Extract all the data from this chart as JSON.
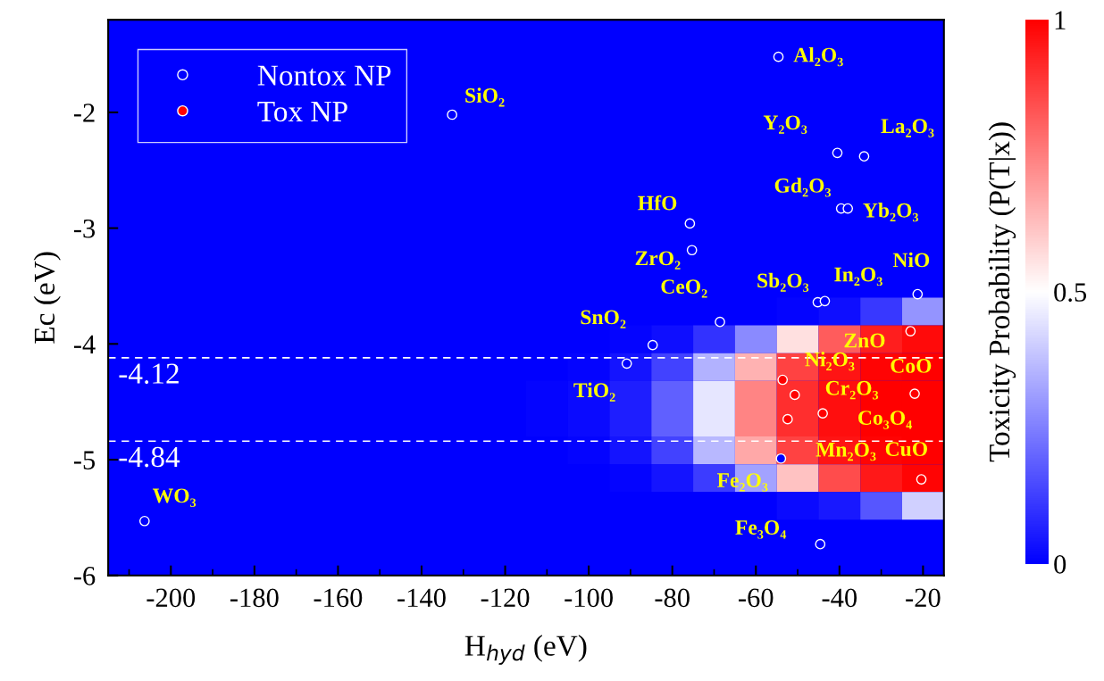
{
  "chart_data": [
    {
      "type": "heatmap",
      "clabel": "Toxicity Probability (P(T|x))",
      "clim": [
        0,
        1
      ],
      "cticks": [
        0,
        0.5,
        1
      ],
      "categories": [
        null,
        null,
        null,
        null,
        null,
        null,
        null,
        null,
        null,
        null,
        null,
        null,
        null,
        null,
        null,
        null,
        null,
        null,
        null,
        null
      ],
      "y_categories": [
        null,
        null,
        null,
        null,
        null,
        null,
        null,
        null,
        null,
        null,
        null,
        null,
        null,
        null,
        null,
        null,
        null,
        null,
        null,
        null
      ],
      "cells": [
        [
          0,
          0,
          0,
          0,
          0,
          0,
          0,
          0,
          0,
          0,
          0,
          0,
          0,
          0,
          0,
          0,
          0,
          0,
          0,
          0
        ],
        [
          0,
          0,
          0,
          0,
          0,
          0,
          0,
          0,
          0,
          0,
          0,
          0,
          0,
          0,
          0,
          0,
          0,
          0,
          0,
          0
        ],
        [
          0,
          0,
          0,
          0,
          0,
          0,
          0,
          0,
          0,
          0,
          0,
          0,
          0,
          0,
          0,
          0,
          0,
          0,
          0,
          0
        ],
        [
          0,
          0,
          0,
          0,
          0,
          0,
          0,
          0,
          0,
          0,
          0,
          0,
          0,
          0,
          0,
          0,
          0,
          0,
          0,
          0
        ],
        [
          0,
          0,
          0,
          0,
          0,
          0,
          0,
          0,
          0,
          0,
          0,
          0,
          0,
          0,
          0,
          0,
          0,
          0,
          0,
          0
        ],
        [
          0,
          0,
          0,
          0,
          0,
          0,
          0,
          0,
          0,
          0,
          0,
          0,
          0,
          0,
          0,
          0,
          0,
          0,
          0,
          0
        ],
        [
          0,
          0,
          0,
          0,
          0,
          0,
          0,
          0,
          0,
          0,
          0,
          0,
          0,
          0,
          0,
          0,
          0,
          0,
          0,
          0
        ],
        [
          0,
          0,
          0,
          0,
          0,
          0,
          0,
          0,
          0,
          0,
          0,
          0,
          0,
          0,
          0,
          0,
          0,
          0,
          0,
          0
        ],
        [
          0,
          0,
          0,
          0,
          0,
          0,
          0,
          0,
          0,
          0,
          0,
          0,
          0,
          0,
          0,
          0,
          0,
          0,
          0,
          0
        ],
        [
          0,
          0,
          0,
          0,
          0,
          0,
          0,
          0,
          0,
          0,
          0,
          0,
          0,
          0,
          0,
          0,
          0,
          0,
          0,
          0
        ],
        [
          0,
          0,
          0,
          0,
          0,
          0,
          0,
          0,
          0,
          0,
          0,
          0,
          0,
          0,
          0,
          0,
          0.01,
          0.03,
          0.11,
          0.29
        ],
        [
          0,
          0,
          0,
          0,
          0,
          0,
          0,
          0,
          0,
          0,
          0,
          0,
          0.01,
          0.03,
          0.1,
          0.27,
          0.56,
          0.82,
          0.94,
          0.98
        ],
        [
          0,
          0,
          0,
          0,
          0,
          0,
          0,
          0,
          0,
          0,
          0,
          0.01,
          0.04,
          0.13,
          0.35,
          0.65,
          0.87,
          0.96,
          0.99,
          1
        ],
        [
          0,
          0,
          0,
          0,
          0,
          0,
          0,
          0,
          0,
          0,
          0.01,
          0.02,
          0.06,
          0.19,
          0.45,
          0.74,
          0.91,
          0.97,
          1,
          1
        ],
        [
          0,
          0,
          0,
          0,
          0,
          0,
          0,
          0,
          0,
          0,
          0.01,
          0.02,
          0.06,
          0.19,
          0.45,
          0.74,
          0.91,
          0.97,
          1,
          1
        ],
        [
          0,
          0,
          0,
          0,
          0,
          0,
          0,
          0,
          0,
          0,
          0,
          0.01,
          0.04,
          0.13,
          0.36,
          0.67,
          0.87,
          0.96,
          0.99,
          1
        ],
        [
          0,
          0,
          0,
          0,
          0,
          0,
          0,
          0,
          0,
          0,
          0,
          0,
          0.01,
          0.04,
          0.12,
          0.32,
          0.62,
          0.85,
          0.95,
          0.99
        ],
        [
          0,
          0,
          0,
          0,
          0,
          0,
          0,
          0,
          0,
          0,
          0,
          0,
          0,
          0,
          0,
          0,
          0.02,
          0.05,
          0.17,
          0.41
        ],
        [
          0,
          0,
          0,
          0,
          0,
          0,
          0,
          0,
          0,
          0,
          0,
          0,
          0,
          0,
          0,
          0,
          0,
          0,
          0,
          0
        ],
        [
          0,
          0,
          0,
          0,
          0,
          0,
          0,
          0,
          0,
          0,
          0,
          0,
          0,
          0,
          0,
          0,
          0,
          0,
          0,
          0
        ]
      ]
    },
    {
      "type": "scatter",
      "xlabel": "H$_{hyd}$ (eV)",
      "ylabel": "Ec (eV)",
      "xlim": [
        -215,
        -15
      ],
      "xticks": [
        -200,
        -180,
        -160,
        -140,
        -120,
        -100,
        -80,
        -60,
        -40,
        -20
      ],
      "ylim": [
        -6,
        -1.2
      ],
      "yticks": [
        -6,
        -5,
        -4,
        -3,
        -2
      ],
      "legend": "top left",
      "marker": "circle",
      "series": [
        {
          "name": "Nontox NP",
          "color": "#0000ff",
          "x": [
            -54.6,
            -132.7,
            -40.5,
            -34.1,
            -39.6,
            -38.0,
            -75.8,
            -75.3,
            -45.2,
            -43.5,
            -21.3,
            -68.6,
            -84.7,
            -90.9,
            -54.0,
            -44.6,
            -206.3
          ],
          "values": [
            -1.52,
            -2.02,
            -2.35,
            -2.38,
            -2.83,
            -2.83,
            -2.96,
            -3.19,
            -3.64,
            -3.63,
            -3.57,
            -3.81,
            -4.01,
            -4.17,
            -4.99,
            -5.73,
            -5.53
          ]
        },
        {
          "name": "Tox NP",
          "color": "#ff0000",
          "x": [
            -23.0,
            -53.6,
            -50.7,
            -22.0,
            -44.0,
            -52.4,
            -20.4
          ],
          "values": [
            -3.89,
            -4.31,
            -4.44,
            -4.43,
            -4.6,
            -4.65,
            -5.17
          ]
        }
      ],
      "ref_lines": [
        {
          "axis": "y",
          "value": -4.12,
          "label": "-4.12",
          "color": "#ffffff",
          "line_style": "dashed"
        },
        {
          "axis": "y",
          "value": -4.84,
          "label": "-4.84",
          "color": "#ffffff",
          "line_style": "dashed"
        }
      ],
      "annotations": [
        {
          "text": "Al₂O₃",
          "x": -54.6,
          "y": -1.52
        },
        {
          "text": "SiO₂",
          "x": -132.7,
          "y": -2.02
        },
        {
          "text": "Y₂O₃",
          "x": -40.5,
          "y": -2.35
        },
        {
          "text": "La₂O₃",
          "x": -34.1,
          "y": -2.38
        },
        {
          "text": "Gd₂O₃",
          "x": -39.6,
          "y": -2.83
        },
        {
          "text": "Yb₂O₃",
          "x": -38.0,
          "y": -2.83
        },
        {
          "text": "HfO",
          "x": -75.8,
          "y": -2.96
        },
        {
          "text": "ZrO₂",
          "x": -75.3,
          "y": -3.19
        },
        {
          "text": "Sb₂O₃",
          "x": -45.2,
          "y": -3.64
        },
        {
          "text": "In₂O₃",
          "x": -43.5,
          "y": -3.63
        },
        {
          "text": "NiO",
          "x": -21.3,
          "y": -3.57
        },
        {
          "text": "CeO₂",
          "x": -68.6,
          "y": -3.81
        },
        {
          "text": "SnO₂",
          "x": -84.7,
          "y": -4.01
        },
        {
          "text": "TiO₂",
          "x": -90.9,
          "y": -4.17
        },
        {
          "text": "Fe₂O₃",
          "x": -54.0,
          "y": -4.99
        },
        {
          "text": "Fe₃O₄",
          "x": -44.6,
          "y": -5.73
        },
        {
          "text": "WO₃",
          "x": -206.3,
          "y": -5.53
        },
        {
          "text": "ZnO",
          "x": -23.0,
          "y": -3.89
        },
        {
          "text": "Ni₂O₃",
          "x": -53.6,
          "y": -4.31
        },
        {
          "text": "Cr₂O₃",
          "x": -50.7,
          "y": -4.44
        },
        {
          "text": "CoO",
          "x": -22.0,
          "y": -4.43
        },
        {
          "text": "Co₃O₄",
          "x": -44.0,
          "y": -4.6
        },
        {
          "text": "Mn₂O₃",
          "x": -52.4,
          "y": -4.65
        },
        {
          "text": "CuO",
          "x": -20.4,
          "y": -5.17
        }
      ]
    }
  ]
}
